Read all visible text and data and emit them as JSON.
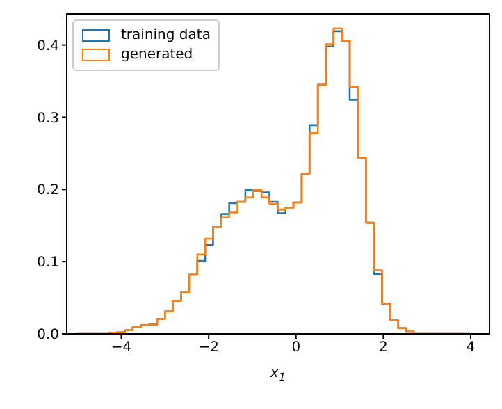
{
  "chart_data": {
    "type": "histogram",
    "xlabel": "x$_{1}$",
    "bins": [
      -5.02,
      -4.84,
      -4.66,
      -4.47,
      -4.29,
      -4.1,
      -3.92,
      -3.74,
      -3.55,
      -3.37,
      -3.18,
      -3.0,
      -2.82,
      -2.63,
      -2.45,
      -2.26,
      -2.08,
      -1.9,
      -1.71,
      -1.53,
      -1.34,
      -1.16,
      -0.98,
      -0.79,
      -0.61,
      -0.42,
      -0.24,
      -0.06,
      0.13,
      0.31,
      0.5,
      0.68,
      0.86,
      1.05,
      1.23,
      1.42,
      1.6,
      1.78,
      1.97,
      2.15,
      2.34,
      2.52,
      2.7,
      2.89,
      3.07,
      3.26,
      3.44,
      3.62,
      3.81,
      3.99
    ],
    "series": [
      {
        "name": "training data",
        "color": "#1f77b4",
        "values": [
          0,
          0,
          0,
          0,
          0.001,
          0.002,
          0.005,
          0.009,
          0.012,
          0.013,
          0.021,
          0.031,
          0.046,
          0.058,
          0.082,
          0.101,
          0.123,
          0.148,
          0.166,
          0.181,
          0.183,
          0.199,
          0.198,
          0.196,
          0.183,
          0.167,
          0.175,
          0.182,
          0.222,
          0.289,
          0.345,
          0.398,
          0.419,
          0.406,
          0.324,
          0.244,
          0.154,
          0.083,
          0.042,
          0.019,
          0.008,
          0.003,
          0,
          0,
          0,
          0,
          0,
          0,
          0
        ]
      },
      {
        "name": "generated",
        "color": "#ff7f0e",
        "values": [
          0,
          0,
          0,
          0,
          0.001,
          0.002,
          0.005,
          0.009,
          0.012,
          0.013,
          0.021,
          0.031,
          0.046,
          0.058,
          0.082,
          0.11,
          0.132,
          0.148,
          0.161,
          0.168,
          0.183,
          0.189,
          0.199,
          0.189,
          0.18,
          0.172,
          0.175,
          0.182,
          0.222,
          0.278,
          0.345,
          0.401,
          0.423,
          0.406,
          0.342,
          0.244,
          0.154,
          0.088,
          0.042,
          0.019,
          0.008,
          0.003,
          0,
          0,
          0,
          0,
          0,
          0,
          0
        ]
      }
    ],
    "xlim": [
      -5.25,
      4.43
    ],
    "ylim": [
      0,
      0.443
    ],
    "xticks": [
      {
        "value": -4,
        "label": "−4"
      },
      {
        "value": -2,
        "label": "−2"
      },
      0,
      2,
      4
    ],
    "yticks": [
      {
        "value": 0,
        "label": "0.0"
      },
      {
        "value": 0.1,
        "label": "0.1"
      },
      {
        "value": 0.2,
        "label": "0.2"
      },
      {
        "value": 0.3,
        "label": "0.3"
      },
      {
        "value": 0.4,
        "label": "0.4"
      }
    ],
    "legend": "top left",
    "grid": false
  }
}
